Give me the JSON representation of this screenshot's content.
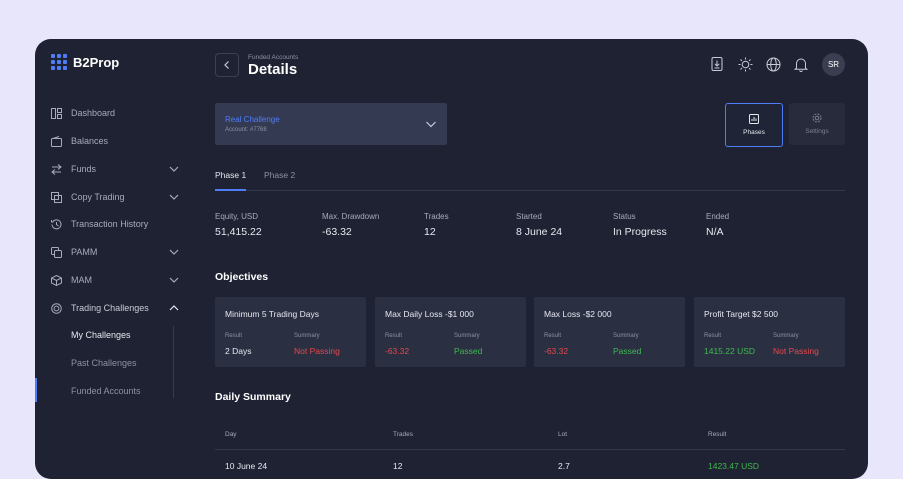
{
  "brand": {
    "name": "B2Prop"
  },
  "colors": {
    "accent": "#4f7cf7",
    "negative": "#e5484d",
    "positive": "#3fb950"
  },
  "sidebar": {
    "items": [
      {
        "label": "Dashboard",
        "icon": "dashboard-icon"
      },
      {
        "label": "Balances",
        "icon": "wallet-icon"
      },
      {
        "label": "Funds",
        "icon": "transfer-arrows-icon"
      },
      {
        "label": "Copy Trading",
        "icon": "copy-icon"
      },
      {
        "label": "Transaction History",
        "icon": "history-icon"
      },
      {
        "label": "PAMM",
        "icon": "pamm-icon"
      },
      {
        "label": "MAM",
        "icon": "cube-icon"
      },
      {
        "label": "Trading Challenges",
        "icon": "target-icon"
      }
    ],
    "subitems": [
      {
        "label": "My Challenges"
      },
      {
        "label": "Past Challenges"
      },
      {
        "label": "Funded Accounts"
      }
    ]
  },
  "header": {
    "breadcrumb": "Funded Accounts",
    "title": "Details",
    "avatar_initials": "SR"
  },
  "account_select": {
    "name": "Real Challenge",
    "account": "Account: #7768"
  },
  "view_buttons": {
    "phases": "Phases",
    "settings": "Settings"
  },
  "tabs": [
    {
      "label": "Phase 1"
    },
    {
      "label": "Phase 2"
    }
  ],
  "stats": [
    {
      "label": "Equity, USD",
      "value": "51,415.22"
    },
    {
      "label": "Max. Drawdown",
      "value": "-63.32"
    },
    {
      "label": "Trades",
      "value": "12"
    },
    {
      "label": "Started",
      "value": "8 June 24"
    },
    {
      "label": "Status",
      "value": "In Progress"
    },
    {
      "label": "Ended",
      "value": "N/A"
    }
  ],
  "objectives": {
    "title": "Objectives",
    "result_label": "Result",
    "summary_label": "Summary",
    "items": [
      {
        "title": "Minimum 5 Trading Days",
        "result": "2 Days",
        "summary": "Not Passing"
      },
      {
        "title": "Max  Daily Loss -$1 000",
        "result": "-63.32",
        "summary": "Passed"
      },
      {
        "title": "Max Loss -$2 000",
        "result": "-63.32",
        "summary": "Passed"
      },
      {
        "title": "Profit Target $2 500",
        "result": "1415.22 USD",
        "summary": "Not Passing"
      }
    ]
  },
  "daily_summary": {
    "title": "Daily Summary",
    "columns": [
      "Day",
      "Trades",
      "Lot",
      "Result"
    ],
    "rows": [
      {
        "day": "10 June 24",
        "trades": "12",
        "lot": "2.7",
        "result": "1423.47 USD"
      }
    ]
  }
}
